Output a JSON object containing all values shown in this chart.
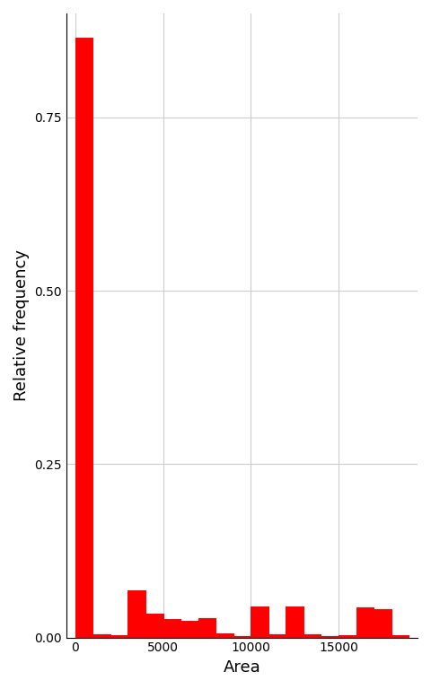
{
  "title": "",
  "xlabel": "Area",
  "ylabel": "Relative frequency",
  "bar_color": "#FF0000",
  "edge_color": "#FF0000",
  "background_color": "#FFFFFF",
  "grid_color": "#CCCCCC",
  "ylim": [
    0,
    0.9
  ],
  "xlim": [
    -500,
    19500
  ],
  "yticks": [
    0.0,
    0.25,
    0.5,
    0.75
  ],
  "xticks": [
    0,
    5000,
    10000,
    15000
  ],
  "bin_edges": [
    0,
    1000,
    2000,
    3000,
    4000,
    5000,
    6000,
    7000,
    8000,
    9000,
    10000,
    11000,
    12000,
    13000,
    14000,
    15000,
    16000,
    17000,
    18000,
    19000
  ],
  "bin_heights": [
    0.865,
    0.005,
    0.003,
    0.068,
    0.035,
    0.027,
    0.024,
    0.028,
    0.006,
    0.002,
    0.045,
    0.004,
    0.045,
    0.004,
    0.002,
    0.003,
    0.043,
    0.041,
    0.003
  ]
}
